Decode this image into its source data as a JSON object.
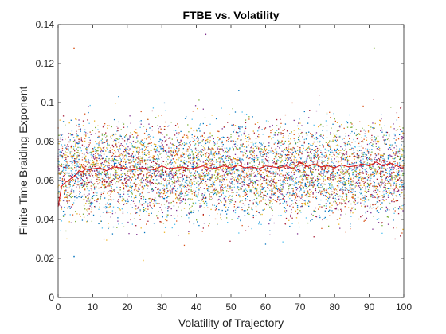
{
  "chart_data": {
    "type": "scatter",
    "title": "FTBE vs. Volatility",
    "xlabel": "Volatility of Trajectory",
    "ylabel": "Finite Time Braiding Exponent",
    "xlim": [
      0,
      100
    ],
    "ylim": [
      0,
      0.14
    ],
    "xticks": [
      "0",
      "10",
      "20",
      "30",
      "40",
      "50",
      "60",
      "70",
      "80",
      "90",
      "100"
    ],
    "xtick_values": [
      0,
      10,
      20,
      30,
      40,
      50,
      60,
      70,
      80,
      90,
      100
    ],
    "yticks": [
      "0",
      "0.02",
      "0.04",
      "0.06",
      "0.08",
      "0.1",
      "0.12",
      "0.14"
    ],
    "ytick_values": [
      0,
      0.02,
      0.04,
      0.06,
      0.08,
      0.1,
      0.12,
      0.14
    ],
    "grid": false,
    "box": true,
    "scatter_colors": [
      "#0072BD",
      "#D95319",
      "#EDB120",
      "#7E2F8E",
      "#77AC30",
      "#4DBEEE",
      "#A2142F"
    ],
    "scatter_x": [
      0,
      100
    ],
    "scatter_spread": {
      "typical_low": 0.04,
      "typical_high": 0.095,
      "min": 0.019,
      "max": 0.135
    },
    "notable_points": [
      {
        "x": 4.6,
        "y": 0.021
      },
      {
        "x": 4.6,
        "y": 0.128
      },
      {
        "x": 24.6,
        "y": 0.019
      },
      {
        "x": 42.7,
        "y": 0.135
      },
      {
        "x": 91.4,
        "y": 0.128
      }
    ],
    "series": [
      {
        "mean_x": [
          0,
          1,
          2,
          3,
          4,
          5,
          6,
          7,
          8,
          9,
          10,
          12,
          14,
          16,
          18,
          20,
          22,
          24,
          26,
          28,
          30,
          32,
          34,
          36,
          38,
          40,
          42,
          44,
          46,
          48,
          50,
          52,
          54,
          56,
          58,
          60,
          62,
          64,
          66,
          68,
          70,
          72,
          74,
          76,
          78,
          80,
          82,
          84,
          86,
          88,
          90,
          92,
          94,
          96,
          98,
          100
        ],
        "mean_y": [
          0.0465,
          0.057,
          0.059,
          0.06,
          0.0615,
          0.0625,
          0.065,
          0.0645,
          0.066,
          0.0655,
          0.066,
          0.0665,
          0.065,
          0.067,
          0.0665,
          0.066,
          0.0655,
          0.0665,
          0.066,
          0.0655,
          0.0675,
          0.066,
          0.0665,
          0.067,
          0.066,
          0.0665,
          0.0675,
          0.066,
          0.0665,
          0.0675,
          0.0665,
          0.068,
          0.0665,
          0.067,
          0.066,
          0.0675,
          0.067,
          0.0665,
          0.0675,
          0.066,
          0.0695,
          0.067,
          0.0685,
          0.067,
          0.0675,
          0.0665,
          0.068,
          0.067,
          0.0675,
          0.0685,
          0.0675,
          0.0695,
          0.0675,
          0.069,
          0.0675,
          0.066
        ],
        "color": "#D7191C"
      }
    ]
  }
}
